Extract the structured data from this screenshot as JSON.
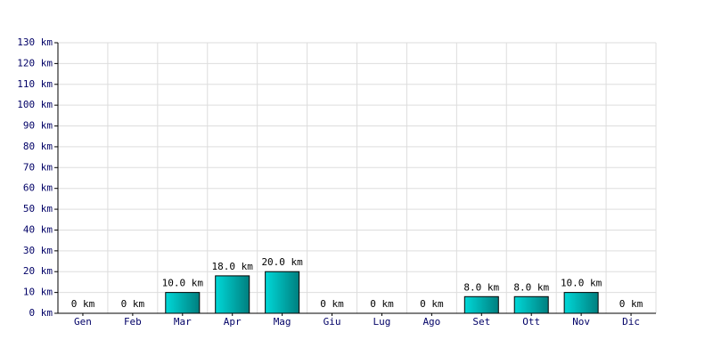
{
  "chart_data": {
    "type": "bar",
    "categories": [
      "Gen",
      "Feb",
      "Mar",
      "Apr",
      "Mag",
      "Giu",
      "Lug",
      "Ago",
      "Set",
      "Ott",
      "Nov",
      "Dic"
    ],
    "values": [
      0,
      0,
      10,
      18,
      20,
      0,
      0,
      0,
      8,
      8,
      10,
      0
    ],
    "value_labels": [
      "0 km",
      "0 km",
      "10.0 km",
      "18.0 km",
      "20.0 km",
      "0 km",
      "0 km",
      "0 km",
      "8.0 km",
      "8.0 km",
      "10.0 km",
      "0 km"
    ],
    "color": "#00d8d8",
    "ylim": [
      0,
      130
    ],
    "yticks": [
      {
        "value": 0,
        "label": "0 km"
      },
      {
        "value": 10,
        "label": "10 km"
      },
      {
        "value": 20,
        "label": "20 km"
      },
      {
        "value": 30,
        "label": "30 km"
      },
      {
        "value": 40,
        "label": "40 km"
      },
      {
        "value": 50,
        "label": "50 km"
      },
      {
        "value": 60,
        "label": "60 km"
      },
      {
        "value": 70,
        "label": "70 km"
      },
      {
        "value": 80,
        "label": "80 km"
      },
      {
        "value": 90,
        "label": "90 km"
      },
      {
        "value": 100,
        "label": "100 km"
      },
      {
        "value": 110,
        "label": "110 km"
      },
      {
        "value": 120,
        "label": "120 km"
      },
      {
        "value": 130,
        "label": "130 km"
      }
    ],
    "grid": true
  }
}
